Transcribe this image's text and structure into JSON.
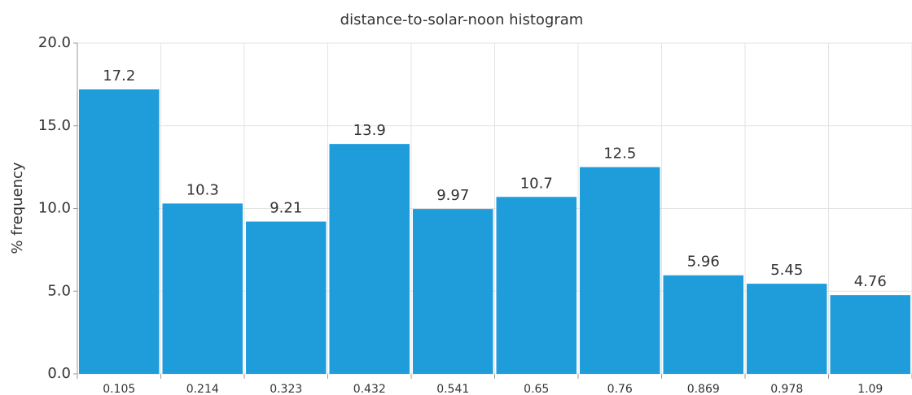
{
  "chart_data": {
    "type": "bar",
    "title": "distance-to-solar-noon histogram",
    "y_label": "% frequency",
    "categories": [
      "0.105",
      "0.214",
      "0.323",
      "0.432",
      "0.541",
      "0.65",
      "0.76",
      "0.869",
      "0.978",
      "1.09"
    ],
    "values": [
      17.2,
      10.3,
      9.21,
      13.9,
      9.97,
      10.7,
      12.5,
      5.96,
      5.45,
      4.76
    ],
    "color": "#1f9ddb",
    "ylim": [
      0,
      20
    ],
    "yticks": [
      {
        "value": 0,
        "label": "0.0"
      },
      {
        "value": 5,
        "label": "5.0"
      },
      {
        "value": 10,
        "label": "10.0"
      },
      {
        "value": 15,
        "label": "15.0"
      },
      {
        "value": 20,
        "label": "20.0"
      }
    ],
    "grid": true
  }
}
